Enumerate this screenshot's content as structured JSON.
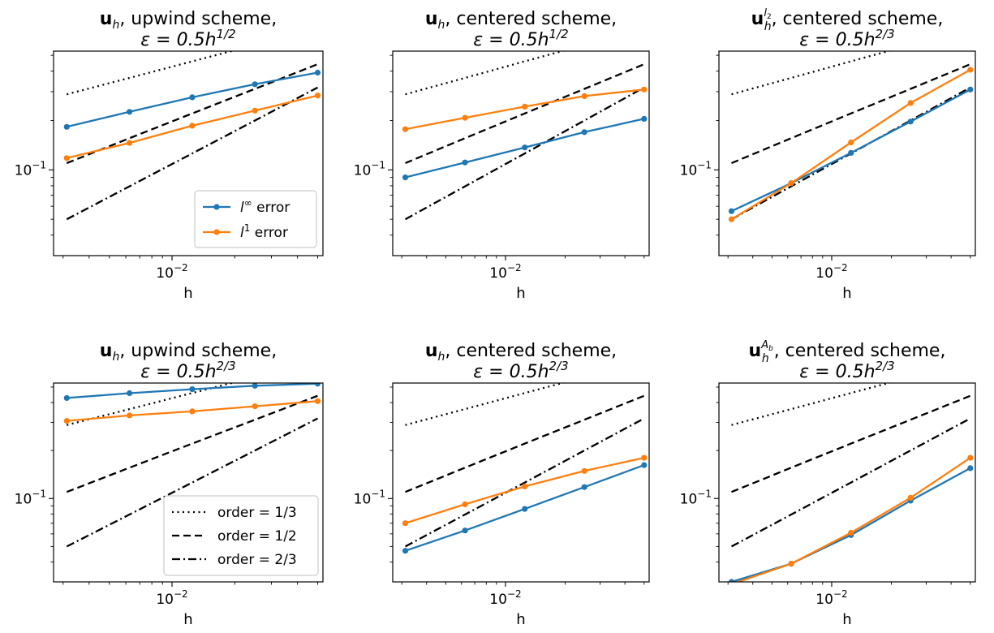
{
  "colors": {
    "series_linf": "#1f77b4",
    "series_l1": "#ff7f0e",
    "reference": "#000000",
    "axes": "#000000",
    "legend_border": "#cccccc"
  },
  "chart_data": [
    {
      "type": "line",
      "xscale": "log",
      "yscale": "log",
      "title_lines": [
        {
          "bold": "u",
          "sub": "h",
          "sup": "",
          "rest": ", upwind scheme,"
        },
        {
          "eps": "ε = 0.5h",
          "exp": "1/2"
        }
      ],
      "xlabel": "h",
      "xlim": [
        0.0027,
        0.053
      ],
      "ylim": [
        0.03,
        0.53
      ],
      "xticks": [
        {
          "value": 0.01,
          "label": "10",
          "exp": "−2"
        }
      ],
      "yticks": [
        {
          "value": 0.1,
          "label": "10",
          "exp": "−1"
        }
      ],
      "x": [
        0.003125,
        0.00625,
        0.0125,
        0.025,
        0.05
      ],
      "series": [
        {
          "name": "l∞ error",
          "name_base": "l",
          "name_sup": "∞",
          "name_rest": " error",
          "values": [
            0.183,
            0.226,
            0.277,
            0.333,
            0.392
          ]
        },
        {
          "name": "l1 error",
          "name_base": "l",
          "name_sup": "1",
          "name_rest": " error",
          "values": [
            0.118,
            0.146,
            0.186,
            0.23,
            0.284
          ]
        }
      ],
      "references": [
        {
          "name": "order = 1/3",
          "style": "dotted",
          "values": [
            0.289,
            0.364,
            0.459,
            0.578,
            0.728
          ]
        },
        {
          "name": "order = 1/2",
          "style": "dashed",
          "values": [
            0.11,
            0.156,
            0.221,
            0.312,
            0.441
          ]
        },
        {
          "name": "order = 2/3",
          "style": "dashdot",
          "values": [
            0.05,
            0.0794,
            0.126,
            0.2,
            0.318
          ]
        }
      ],
      "legend": {
        "placement": "lower right",
        "entries": "series"
      }
    },
    {
      "type": "line",
      "xscale": "log",
      "yscale": "log",
      "title_lines": [
        {
          "bold": "u",
          "sub": "h",
          "sup": "",
          "rest": ", centered scheme,"
        },
        {
          "eps": "ε = 0.5h",
          "exp": "1/2"
        }
      ],
      "xlabel": "h",
      "xlim": [
        0.0027,
        0.053
      ],
      "ylim": [
        0.03,
        0.53
      ],
      "xticks": [
        {
          "value": 0.01,
          "label": "10",
          "exp": "−2"
        }
      ],
      "yticks": [
        {
          "value": 0.1,
          "label": "10",
          "exp": "−1"
        }
      ],
      "x": [
        0.003125,
        0.00625,
        0.0125,
        0.025,
        0.05
      ],
      "series": [
        {
          "name": "l∞ error",
          "values": [
            0.09,
            0.111,
            0.137,
            0.17,
            0.205
          ]
        },
        {
          "name": "l1 error",
          "values": [
            0.177,
            0.208,
            0.243,
            0.282,
            0.309
          ]
        }
      ],
      "references": [
        {
          "name": "order = 1/3",
          "style": "dotted",
          "values": [
            0.289,
            0.364,
            0.459,
            0.578,
            0.728
          ]
        },
        {
          "name": "order = 1/2",
          "style": "dashed",
          "values": [
            0.11,
            0.156,
            0.221,
            0.312,
            0.441
          ]
        },
        {
          "name": "order = 2/3",
          "style": "dashdot",
          "values": [
            0.05,
            0.0794,
            0.126,
            0.2,
            0.318
          ]
        }
      ],
      "legend": null
    },
    {
      "type": "line",
      "xscale": "log",
      "yscale": "log",
      "title_lines": [
        {
          "bold": "u",
          "sub": "h",
          "sup": "l2",
          "rest": ", centered scheme,"
        },
        {
          "eps": "ε = 0.5h",
          "exp": "2/3"
        }
      ],
      "xlabel": "h",
      "xlim": [
        0.0027,
        0.053
      ],
      "ylim": [
        0.03,
        0.53
      ],
      "xticks": [
        {
          "value": 0.01,
          "label": "10",
          "exp": "−2"
        }
      ],
      "yticks": [
        {
          "value": 0.1,
          "label": "10",
          "exp": "−1"
        }
      ],
      "x": [
        0.003125,
        0.00625,
        0.0125,
        0.025,
        0.05
      ],
      "series": [
        {
          "name": "l∞ error",
          "values": [
            0.056,
            0.083,
            0.127,
            0.197,
            0.309
          ]
        },
        {
          "name": "l1 error",
          "values": [
            0.05,
            0.083,
            0.147,
            0.256,
            0.408
          ]
        }
      ],
      "references": [
        {
          "name": "order = 1/3",
          "style": "dotted",
          "values": [
            0.289,
            0.364,
            0.459,
            0.578,
            0.728
          ]
        },
        {
          "name": "order = 1/2",
          "style": "dashed",
          "values": [
            0.11,
            0.156,
            0.221,
            0.312,
            0.441
          ]
        },
        {
          "name": "order = 2/3",
          "style": "dashdot",
          "values": [
            0.05,
            0.0794,
            0.126,
            0.2,
            0.318
          ]
        }
      ],
      "legend": null
    },
    {
      "type": "line",
      "xscale": "log",
      "yscale": "log",
      "title_lines": [
        {
          "bold": "u",
          "sub": "h",
          "sup": "",
          "rest": ", upwind scheme,"
        },
        {
          "eps": "ε = 0.5h",
          "exp": "2/3"
        }
      ],
      "xlabel": "h",
      "xlim": [
        0.0027,
        0.053
      ],
      "ylim": [
        0.03,
        0.53
      ],
      "xticks": [
        {
          "value": 0.01,
          "label": "10",
          "exp": "−2"
        }
      ],
      "yticks": [
        {
          "value": 0.1,
          "label": "10",
          "exp": "−1"
        }
      ],
      "x": [
        0.003125,
        0.00625,
        0.0125,
        0.025,
        0.05
      ],
      "series": [
        {
          "name": "l∞ error",
          "values": [
            0.427,
            0.458,
            0.485,
            0.51,
            0.525
          ]
        },
        {
          "name": "l1 error",
          "values": [
            0.307,
            0.332,
            0.352,
            0.379,
            0.408
          ]
        }
      ],
      "references": [
        {
          "name": "order = 1/3",
          "style": "dotted",
          "values": [
            0.289,
            0.364,
            0.459,
            0.578,
            0.728
          ]
        },
        {
          "name": "order = 1/2",
          "style": "dashed",
          "values": [
            0.11,
            0.156,
            0.221,
            0.312,
            0.441
          ]
        },
        {
          "name": "order = 2/3",
          "style": "dashdot",
          "values": [
            0.05,
            0.0794,
            0.126,
            0.2,
            0.318
          ]
        }
      ],
      "legend": {
        "placement": "lower right",
        "entries": "references"
      }
    },
    {
      "type": "line",
      "xscale": "log",
      "yscale": "log",
      "title_lines": [
        {
          "bold": "u",
          "sub": "h",
          "sup": "",
          "rest": ", centered scheme,"
        },
        {
          "eps": "ε = 0.5h",
          "exp": "2/3"
        }
      ],
      "xlabel": "h",
      "xlim": [
        0.0027,
        0.053
      ],
      "ylim": [
        0.03,
        0.53
      ],
      "xticks": [
        {
          "value": 0.01,
          "label": "10",
          "exp": "−2"
        }
      ],
      "yticks": [
        {
          "value": 0.1,
          "label": "10",
          "exp": "−1"
        }
      ],
      "x": [
        0.003125,
        0.00625,
        0.0125,
        0.025,
        0.05
      ],
      "series": [
        {
          "name": "l∞ error",
          "values": [
            0.047,
            0.063,
            0.086,
            0.118,
            0.162
          ]
        },
        {
          "name": "l1 error",
          "values": [
            0.07,
            0.092,
            0.119,
            0.149,
            0.18
          ]
        }
      ],
      "references": [
        {
          "name": "order = 1/3",
          "style": "dotted",
          "values": [
            0.289,
            0.364,
            0.459,
            0.578,
            0.728
          ]
        },
        {
          "name": "order = 1/2",
          "style": "dashed",
          "values": [
            0.11,
            0.156,
            0.221,
            0.312,
            0.441
          ]
        },
        {
          "name": "order = 2/3",
          "style": "dashdot",
          "values": [
            0.05,
            0.0794,
            0.126,
            0.2,
            0.318
          ]
        }
      ],
      "legend": null
    },
    {
      "type": "line",
      "xscale": "log",
      "yscale": "log",
      "title_lines": [
        {
          "bold": "u",
          "sub": "h",
          "sup": "Ab",
          "rest": ", centered scheme,"
        },
        {
          "eps": "ε = 0.5h",
          "exp": "2/3"
        }
      ],
      "xlabel": "h",
      "xlim": [
        0.0027,
        0.053
      ],
      "ylim": [
        0.03,
        0.53
      ],
      "xticks": [
        {
          "value": 0.01,
          "label": "10",
          "exp": "−2"
        }
      ],
      "yticks": [
        {
          "value": 0.1,
          "label": "10",
          "exp": "−1"
        }
      ],
      "x": [
        0.003125,
        0.00625,
        0.0125,
        0.025,
        0.05
      ],
      "series": [
        {
          "name": "l∞ error",
          "values": [
            0.03,
            0.039,
            0.059,
            0.097,
            0.155
          ]
        },
        {
          "name": "l1 error",
          "values": [
            0.029,
            0.039,
            0.061,
            0.101,
            0.18
          ]
        }
      ],
      "references": [
        {
          "name": "order = 1/3",
          "style": "dotted",
          "values": [
            0.289,
            0.364,
            0.459,
            0.578,
            0.728
          ]
        },
        {
          "name": "order = 1/2",
          "style": "dashed",
          "values": [
            0.11,
            0.156,
            0.221,
            0.312,
            0.441
          ]
        },
        {
          "name": "order = 2/3",
          "style": "dashdot",
          "values": [
            0.05,
            0.0794,
            0.126,
            0.2,
            0.318
          ]
        }
      ],
      "legend": null
    }
  ]
}
